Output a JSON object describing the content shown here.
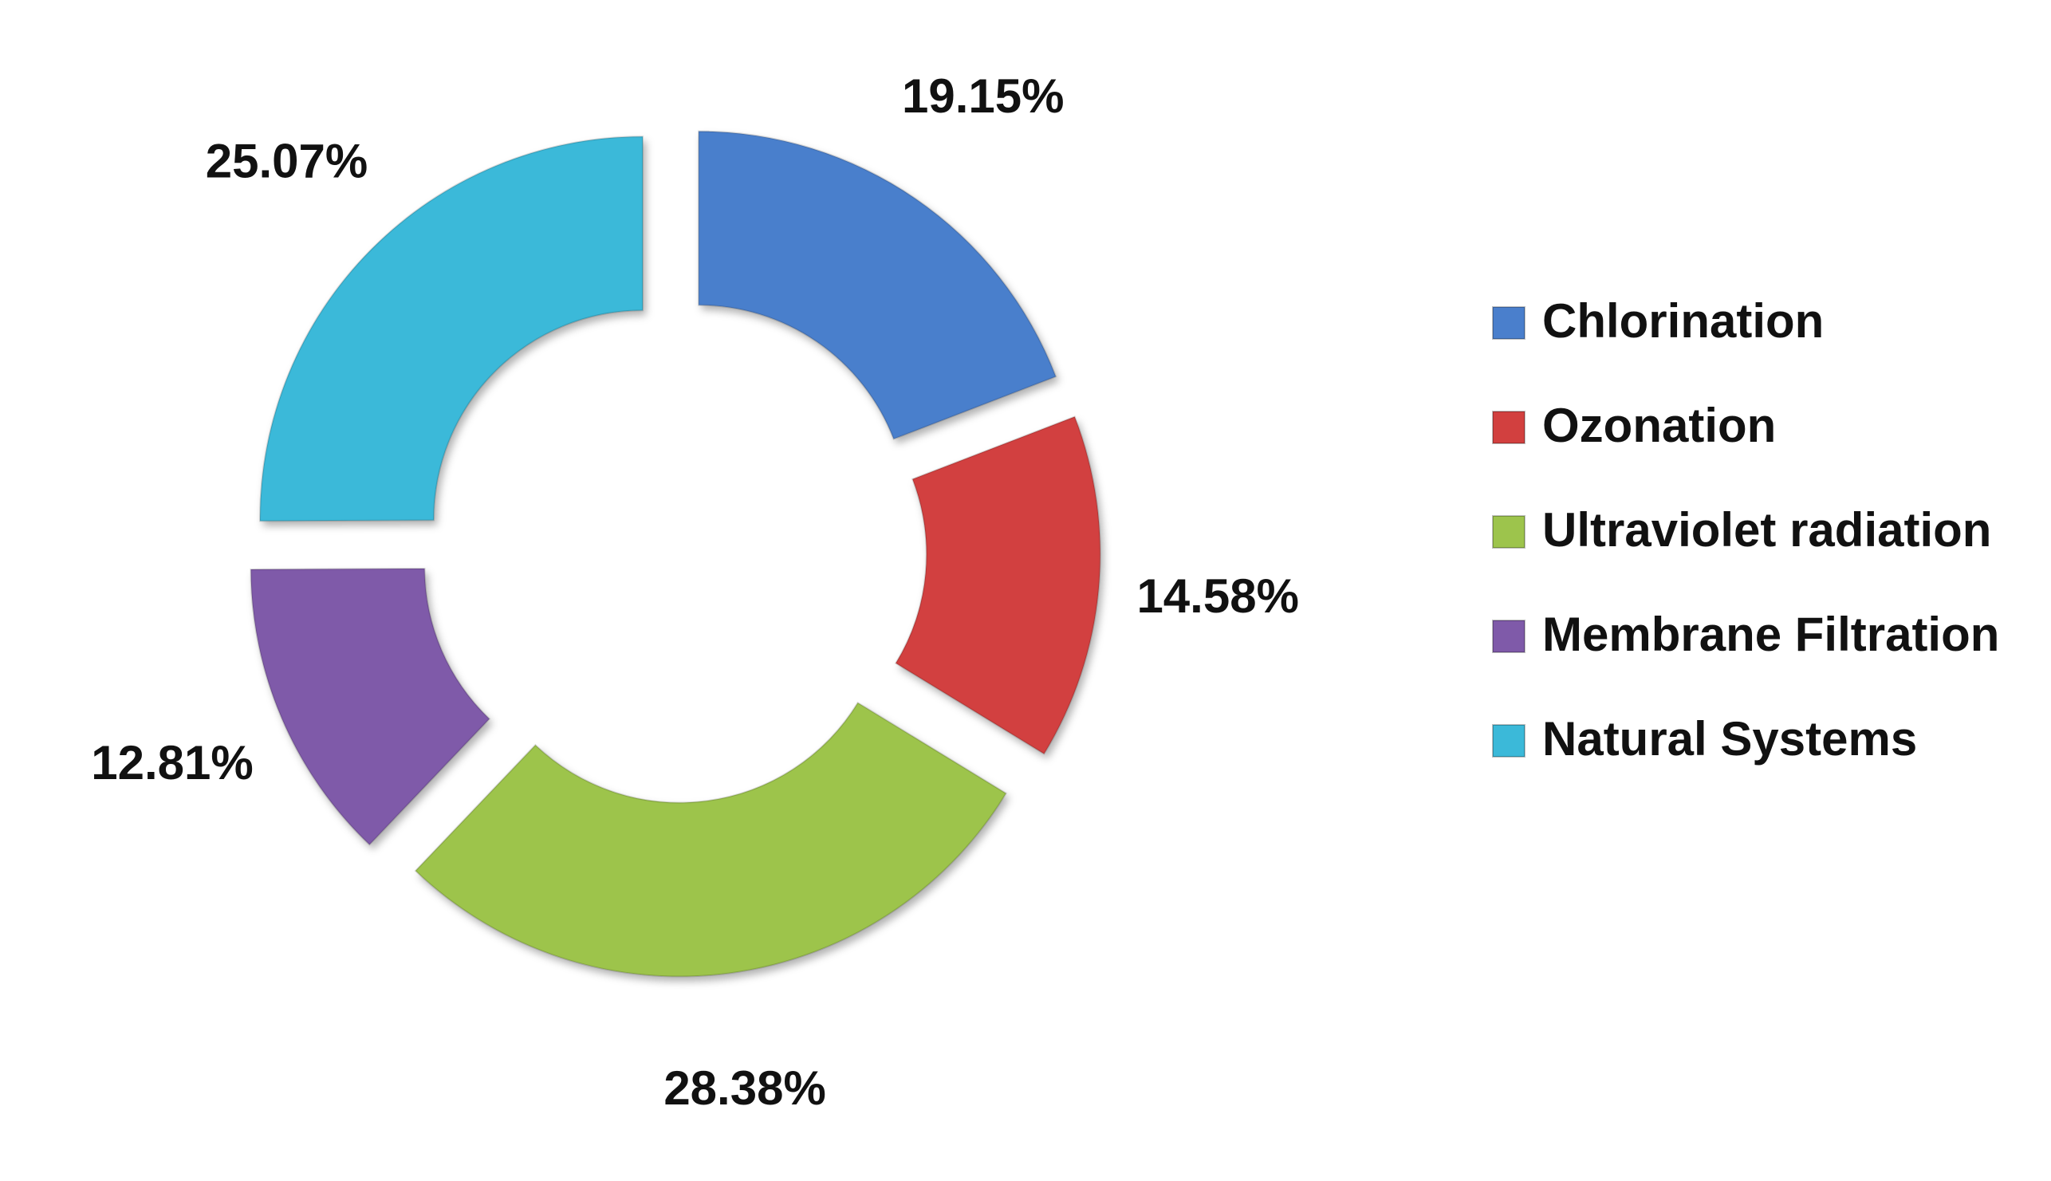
{
  "chart_data": {
    "type": "donut",
    "categories": [
      "Chlorination",
      "Ozonation",
      "Ultraviolet radiation",
      "Membrane Filtration",
      "Natural Systems"
    ],
    "values": [
      19.15,
      14.58,
      28.38,
      12.81,
      25.07
    ],
    "value_labels": [
      "19.15%",
      "14.58%",
      "28.38%",
      "12.81%",
      "25.07%"
    ],
    "colors": [
      "#4a7fcc",
      "#d2403f",
      "#9dc44c",
      "#7f5aa9",
      "#3bb9d9"
    ],
    "legend": "right"
  }
}
